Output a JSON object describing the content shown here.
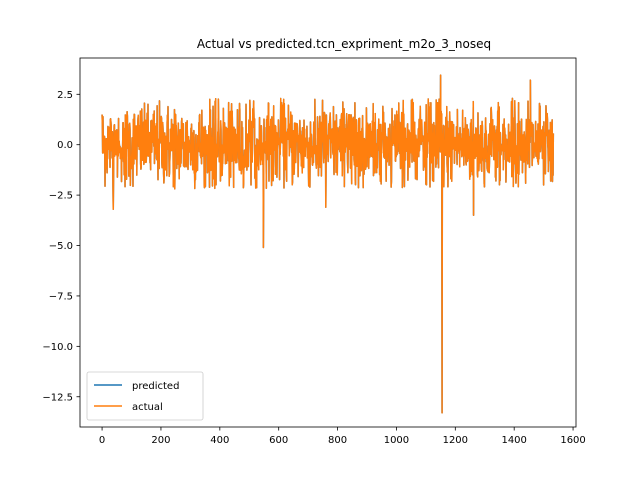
{
  "chart_data": {
    "type": "line",
    "title": "Actual vs predicted.tcn_expriment_m2o_3_noseq",
    "xlabel": "",
    "ylabel": "",
    "xlim": [
      -75,
      1610
    ],
    "ylim": [
      -14.0,
      4.3
    ],
    "x_ticks": [
      0,
      200,
      400,
      600,
      800,
      1000,
      1200,
      1400,
      1600
    ],
    "x_tick_labels": [
      "0",
      "200",
      "400",
      "600",
      "800",
      "1000",
      "1200",
      "1400",
      "1600"
    ],
    "y_ticks": [
      2.5,
      0.0,
      -2.5,
      -5.0,
      -7.5,
      -10.0,
      -12.5
    ],
    "y_tick_labels": [
      "2.5",
      "0.0",
      "−2.5",
      "−5.0",
      "−7.5",
      "−10.0",
      "−12.5"
    ],
    "grid": false,
    "legend_position": "lower-left",
    "n_points": 1534,
    "noise_amplitude": 1.0,
    "series": [
      {
        "name": "predicted",
        "color": "#1f77b4"
      },
      {
        "name": "actual",
        "color": "#ff7f0e",
        "notable_points": [
          {
            "x": 0,
            "y": 1.5
          },
          {
            "x": 38,
            "y": -3.2
          },
          {
            "x": 548,
            "y": -5.1
          },
          {
            "x": 760,
            "y": -3.1
          },
          {
            "x": 1150,
            "y": 3.45
          },
          {
            "x": 1155,
            "y": -13.3
          },
          {
            "x": 1262,
            "y": -3.5
          },
          {
            "x": 1455,
            "y": 3.2
          }
        ]
      }
    ]
  }
}
